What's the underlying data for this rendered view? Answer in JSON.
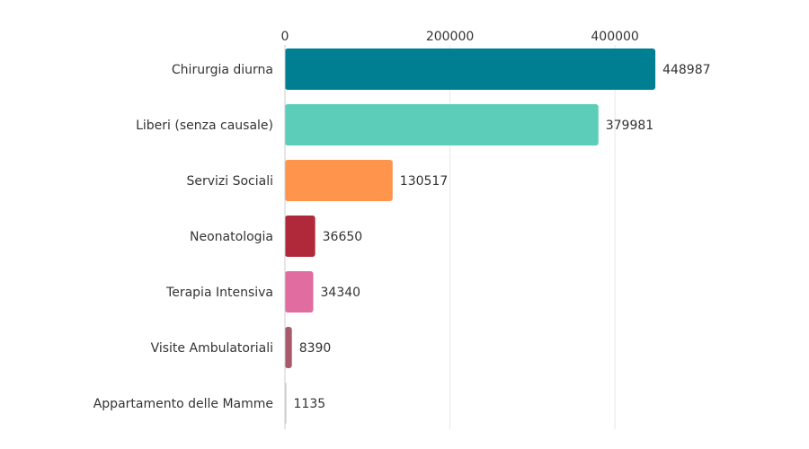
{
  "chart_data": {
    "type": "bar",
    "orientation": "horizontal",
    "title": "",
    "xlabel": "",
    "ylabel": "",
    "xlim": [
      0,
      450000
    ],
    "ticks": [
      0,
      200000,
      400000
    ],
    "tick_labels": [
      "0",
      "200000",
      "400000"
    ],
    "axis_position": "top",
    "grid": true,
    "legend": "none",
    "categories": [
      "Chirurgia diurna",
      "Liberi (senza causale)",
      "Servizi Sociali",
      "Neonatologia",
      "Terapia Intensiva",
      "Visite Ambulatoriali",
      "Appartamento delle Mamme"
    ],
    "values": [
      448987,
      379981,
      130517,
      36650,
      34340,
      8390,
      1135
    ],
    "value_labels": [
      "448987",
      "379981",
      "130517",
      "36650",
      "34340",
      "8390",
      "1135"
    ],
    "colors": [
      "#007f93",
      "#5ccdb8",
      "#ff944d",
      "#b0293a",
      "#e06ca0",
      "#a85a6a",
      "#c7c7c7"
    ]
  }
}
